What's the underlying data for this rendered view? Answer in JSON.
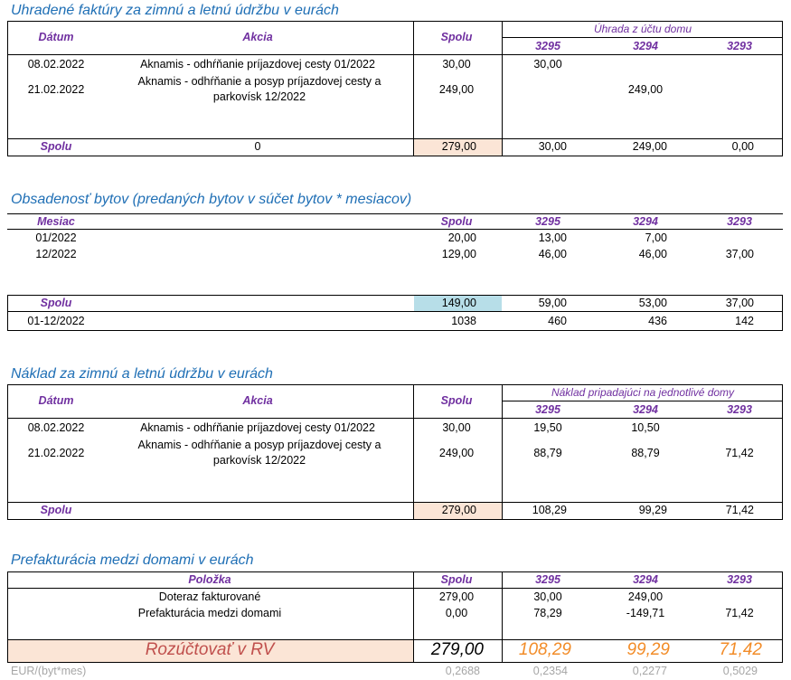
{
  "t1": {
    "title": "Uhradené faktúry za zimnú a letnú údržbu v eurách",
    "headers": {
      "date": "Dátum",
      "action": "Akcia",
      "total": "Spolu",
      "group": "Úhrada z účtu domu",
      "h1": "3295",
      "h2": "3294",
      "h3": "3293"
    },
    "rows": [
      {
        "date": "08.02.2022",
        "action": "Aknamis - odhŕňanie príjazdovej cesty 01/2022",
        "total": "30,00",
        "v1": "30,00",
        "v2": "",
        "v3": ""
      },
      {
        "date": "21.02.2022",
        "action": "Aknamis - odhŕňanie a posyp príjazdovej cesty a parkovísk 12/2022",
        "total": "249,00",
        "v1": "",
        "v2": "249,00",
        "v3": ""
      }
    ],
    "footer": {
      "label": "Spolu",
      "action": "0",
      "total": "279,00",
      "v1": "30,00",
      "v2": "249,00",
      "v3": "0,00"
    }
  },
  "t2": {
    "title": "Obsadenosť bytov (predaných bytov v súčet bytov * mesiacov)",
    "headers": {
      "month": "Mesiac",
      "total": "Spolu",
      "h1": "3295",
      "h2": "3294",
      "h3": "3293"
    },
    "rows": [
      {
        "month": "01/2022",
        "total": "20,00",
        "v1": "13,00",
        "v2": "7,00",
        "v3": ""
      },
      {
        "month": "12/2022",
        "total": "129,00",
        "v1": "46,00",
        "v2": "46,00",
        "v3": "37,00"
      }
    ],
    "footer": {
      "label": "Spolu",
      "total": "149,00",
      "v1": "59,00",
      "v2": "53,00",
      "v3": "37,00"
    },
    "period": {
      "label": "01-12/2022",
      "total": "1038",
      "v1": "460",
      "v2": "436",
      "v3": "142"
    }
  },
  "t3": {
    "title": "Náklad za zimnú a letnú údržbu v eurách",
    "headers": {
      "date": "Dátum",
      "action": "Akcia",
      "total": "Spolu",
      "group": "Náklad pripadajúci na jednotlivé domy",
      "h1": "3295",
      "h2": "3294",
      "h3": "3293"
    },
    "rows": [
      {
        "date": "08.02.2022",
        "action": "Aknamis - odhŕňanie príjazdovej cesty 01/2022",
        "total": "30,00",
        "v1": "19,50",
        "v2": "10,50",
        "v3": ""
      },
      {
        "date": "21.02.2022",
        "action": "Aknamis - odhŕňanie a posyp príjazdovej cesty a parkovísk 12/2022",
        "total": "249,00",
        "v1": "88,79",
        "v2": "88,79",
        "v3": "71,42"
      }
    ],
    "footer": {
      "label": "Spolu",
      "total": "279,00",
      "v1": "108,29",
      "v2": "99,29",
      "v3": "71,42"
    }
  },
  "t4": {
    "title": "Prefakturácia medzi domami v eurách",
    "headers": {
      "item": "Položka",
      "total": "Spolu",
      "h1": "3295",
      "h2": "3294",
      "h3": "3293"
    },
    "rows": [
      {
        "item": "Doteraz fakturované",
        "total": "279,00",
        "v1": "30,00",
        "v2": "249,00",
        "v3": ""
      },
      {
        "item": "Prefakturácia medzi domami",
        "total": "0,00",
        "v1": "78,29",
        "v2": "-149,71",
        "v3": "71,42"
      }
    ],
    "final": {
      "label": "Rozúčtovať v RV",
      "total": "279,00",
      "v1": "108,29",
      "v2": "99,29",
      "v3": "71,42"
    },
    "ratio": {
      "label": "EUR/(byt*mes)",
      "total": "0,2688",
      "v1": "0,2354",
      "v2": "0,2277",
      "v3": "0,5029"
    }
  },
  "colors": {
    "title": "#1f6fb5",
    "header": "#7030a0",
    "peach": "#fbe5d6",
    "blue": "#b7dee8",
    "orange": "#f28c28",
    "final_label": "#c0504d",
    "grey": "#a6a6a6"
  }
}
